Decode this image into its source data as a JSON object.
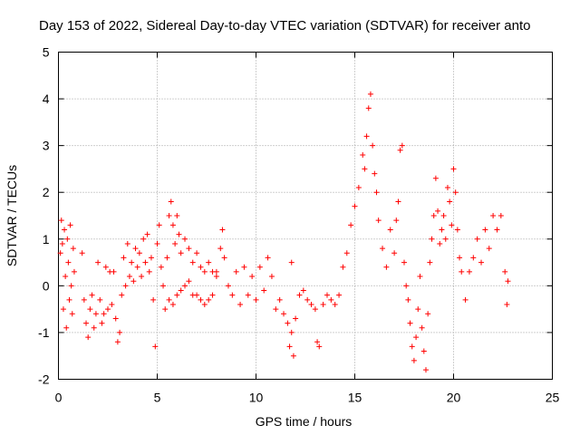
{
  "chart_data": {
    "type": "scatter",
    "title": "Day 153 of 2022, Sidereal Day-to-day VTEC variation (SDTVAR) for receiver anto",
    "xlabel": "GPS time / hours",
    "ylabel": "SDTVAR / TECUs",
    "xlim": [
      0,
      25
    ],
    "ylim": [
      -2,
      5
    ],
    "xticks": [
      "0",
      "5",
      "10",
      "15",
      "20",
      "25"
    ],
    "yticks": [
      "-2",
      "-1",
      "0",
      "1",
      "2",
      "3",
      "4",
      "5"
    ],
    "grid": true,
    "marker": "plus",
    "series_color": "#ff0000",
    "series": [
      {
        "name": "SDTVAR",
        "points": [
          [
            0.1,
            0.7
          ],
          [
            0.15,
            1.4
          ],
          [
            0.2,
            0.9
          ],
          [
            0.25,
            -0.5
          ],
          [
            0.3,
            1.2
          ],
          [
            0.35,
            0.2
          ],
          [
            0.4,
            -0.9
          ],
          [
            0.45,
            1.0
          ],
          [
            0.5,
            0.5
          ],
          [
            0.55,
            -0.3
          ],
          [
            0.6,
            1.3
          ],
          [
            0.65,
            0.0
          ],
          [
            0.7,
            -0.6
          ],
          [
            0.75,
            0.8
          ],
          [
            0.8,
            0.3
          ],
          [
            1.2,
            0.7
          ],
          [
            1.3,
            -0.3
          ],
          [
            1.4,
            -0.8
          ],
          [
            1.5,
            -1.1
          ],
          [
            1.6,
            -0.5
          ],
          [
            1.7,
            -0.2
          ],
          [
            1.8,
            -0.9
          ],
          [
            1.9,
            -0.6
          ],
          [
            2.0,
            0.5
          ],
          [
            2.1,
            -0.3
          ],
          [
            2.2,
            -0.8
          ],
          [
            2.3,
            -0.6
          ],
          [
            2.4,
            0.4
          ],
          [
            2.5,
            -0.5
          ],
          [
            2.6,
            0.3
          ],
          [
            2.7,
            -0.4
          ],
          [
            2.8,
            0.3
          ],
          [
            2.9,
            -0.7
          ],
          [
            3.0,
            -1.2
          ],
          [
            3.1,
            -1.0
          ],
          [
            3.2,
            -0.2
          ],
          [
            3.3,
            0.6
          ],
          [
            3.4,
            0.0
          ],
          [
            3.5,
            0.9
          ],
          [
            3.6,
            0.2
          ],
          [
            3.7,
            0.5
          ],
          [
            3.8,
            0.1
          ],
          [
            3.9,
            0.8
          ],
          [
            4.0,
            0.4
          ],
          [
            4.1,
            0.7
          ],
          [
            4.2,
            0.2
          ],
          [
            4.3,
            1.0
          ],
          [
            4.4,
            0.5
          ],
          [
            4.5,
            1.1
          ],
          [
            4.6,
            0.3
          ],
          [
            4.7,
            0.6
          ],
          [
            4.8,
            -0.3
          ],
          [
            4.9,
            -1.3
          ],
          [
            5.0,
            0.9
          ],
          [
            5.1,
            1.3
          ],
          [
            5.2,
            0.4
          ],
          [
            5.3,
            0.0
          ],
          [
            5.4,
            -0.5
          ],
          [
            5.5,
            0.6
          ],
          [
            5.6,
            1.5
          ],
          [
            5.7,
            1.8
          ],
          [
            5.8,
            1.3
          ],
          [
            5.9,
            0.9
          ],
          [
            6.0,
            1.5
          ],
          [
            6.1,
            1.1
          ],
          [
            6.2,
            0.7
          ],
          [
            6.4,
            1.0
          ],
          [
            6.6,
            0.8
          ],
          [
            6.8,
            0.5
          ],
          [
            7.0,
            0.7
          ],
          [
            7.2,
            0.4
          ],
          [
            7.4,
            0.3
          ],
          [
            7.6,
            0.5
          ],
          [
            7.8,
            0.3
          ],
          [
            8.0,
            0.2
          ],
          [
            5.6,
            -0.3
          ],
          [
            5.8,
            -0.4
          ],
          [
            6.0,
            -0.2
          ],
          [
            6.2,
            -0.1
          ],
          [
            6.4,
            0.0
          ],
          [
            6.6,
            0.1
          ],
          [
            6.8,
            -0.2
          ],
          [
            7.0,
            -0.2
          ],
          [
            7.2,
            -0.3
          ],
          [
            7.4,
            -0.4
          ],
          [
            7.6,
            -0.3
          ],
          [
            7.8,
            -0.2
          ],
          [
            8.0,
            0.3
          ],
          [
            8.2,
            0.8
          ],
          [
            8.3,
            1.2
          ],
          [
            8.4,
            0.6
          ],
          [
            8.6,
            0.0
          ],
          [
            8.8,
            -0.2
          ],
          [
            9.0,
            0.3
          ],
          [
            9.2,
            -0.4
          ],
          [
            9.4,
            0.4
          ],
          [
            9.6,
            -0.2
          ],
          [
            9.8,
            0.2
          ],
          [
            10.0,
            -0.3
          ],
          [
            10.2,
            0.4
          ],
          [
            10.4,
            -0.1
          ],
          [
            10.6,
            0.6
          ],
          [
            10.8,
            0.2
          ],
          [
            11.0,
            -0.5
          ],
          [
            11.2,
            -0.3
          ],
          [
            11.4,
            -0.6
          ],
          [
            11.6,
            -0.8
          ],
          [
            11.7,
            -1.3
          ],
          [
            11.8,
            -1.0
          ],
          [
            11.9,
            -1.5
          ],
          [
            12.0,
            -0.7
          ],
          [
            11.8,
            0.5
          ],
          [
            12.2,
            -0.2
          ],
          [
            12.4,
            -0.1
          ],
          [
            12.6,
            -0.3
          ],
          [
            12.8,
            -0.4
          ],
          [
            13.0,
            -0.5
          ],
          [
            13.1,
            -1.2
          ],
          [
            13.2,
            -1.3
          ],
          [
            13.4,
            -0.4
          ],
          [
            13.6,
            -0.2
          ],
          [
            13.8,
            -0.3
          ],
          [
            14.0,
            -0.4
          ],
          [
            14.2,
            -0.2
          ],
          [
            14.4,
            0.4
          ],
          [
            14.6,
            0.7
          ],
          [
            14.8,
            1.3
          ],
          [
            15.0,
            1.7
          ],
          [
            15.2,
            2.1
          ],
          [
            15.4,
            2.8
          ],
          [
            15.5,
            2.5
          ],
          [
            15.6,
            3.2
          ],
          [
            15.7,
            3.8
          ],
          [
            15.8,
            4.1
          ],
          [
            15.9,
            3.0
          ],
          [
            16.0,
            2.4
          ],
          [
            16.1,
            2.0
          ],
          [
            16.2,
            1.4
          ],
          [
            16.4,
            0.8
          ],
          [
            16.6,
            0.4
          ],
          [
            16.8,
            1.2
          ],
          [
            17.0,
            0.7
          ],
          [
            17.1,
            1.4
          ],
          [
            17.2,
            1.8
          ],
          [
            17.3,
            2.9
          ],
          [
            17.4,
            3.0
          ],
          [
            17.5,
            0.5
          ],
          [
            17.6,
            0.0
          ],
          [
            17.7,
            -0.3
          ],
          [
            17.8,
            -0.8
          ],
          [
            17.9,
            -1.3
          ],
          [
            18.0,
            -1.6
          ],
          [
            18.1,
            -1.1
          ],
          [
            18.2,
            -0.5
          ],
          [
            18.3,
            0.2
          ],
          [
            18.4,
            -0.9
          ],
          [
            18.5,
            -1.4
          ],
          [
            18.6,
            -1.8
          ],
          [
            18.7,
            -0.6
          ],
          [
            18.8,
            0.5
          ],
          [
            18.9,
            1.0
          ],
          [
            19.0,
            1.5
          ],
          [
            19.1,
            2.3
          ],
          [
            19.2,
            1.6
          ],
          [
            19.3,
            0.9
          ],
          [
            19.4,
            1.2
          ],
          [
            19.5,
            1.5
          ],
          [
            19.6,
            1.0
          ],
          [
            19.7,
            2.1
          ],
          [
            19.8,
            1.8
          ],
          [
            19.9,
            1.3
          ],
          [
            20.0,
            2.5
          ],
          [
            20.1,
            2.0
          ],
          [
            20.2,
            1.2
          ],
          [
            20.3,
            0.6
          ],
          [
            20.4,
            0.3
          ],
          [
            20.6,
            -0.3
          ],
          [
            20.8,
            0.3
          ],
          [
            21.0,
            0.6
          ],
          [
            21.2,
            1.0
          ],
          [
            21.4,
            0.5
          ],
          [
            21.6,
            1.2
          ],
          [
            21.8,
            0.8
          ],
          [
            22.0,
            1.5
          ],
          [
            22.2,
            1.2
          ],
          [
            22.4,
            1.5
          ],
          [
            22.6,
            0.3
          ],
          [
            22.7,
            -0.4
          ],
          [
            22.75,
            0.1
          ]
        ]
      }
    ]
  }
}
